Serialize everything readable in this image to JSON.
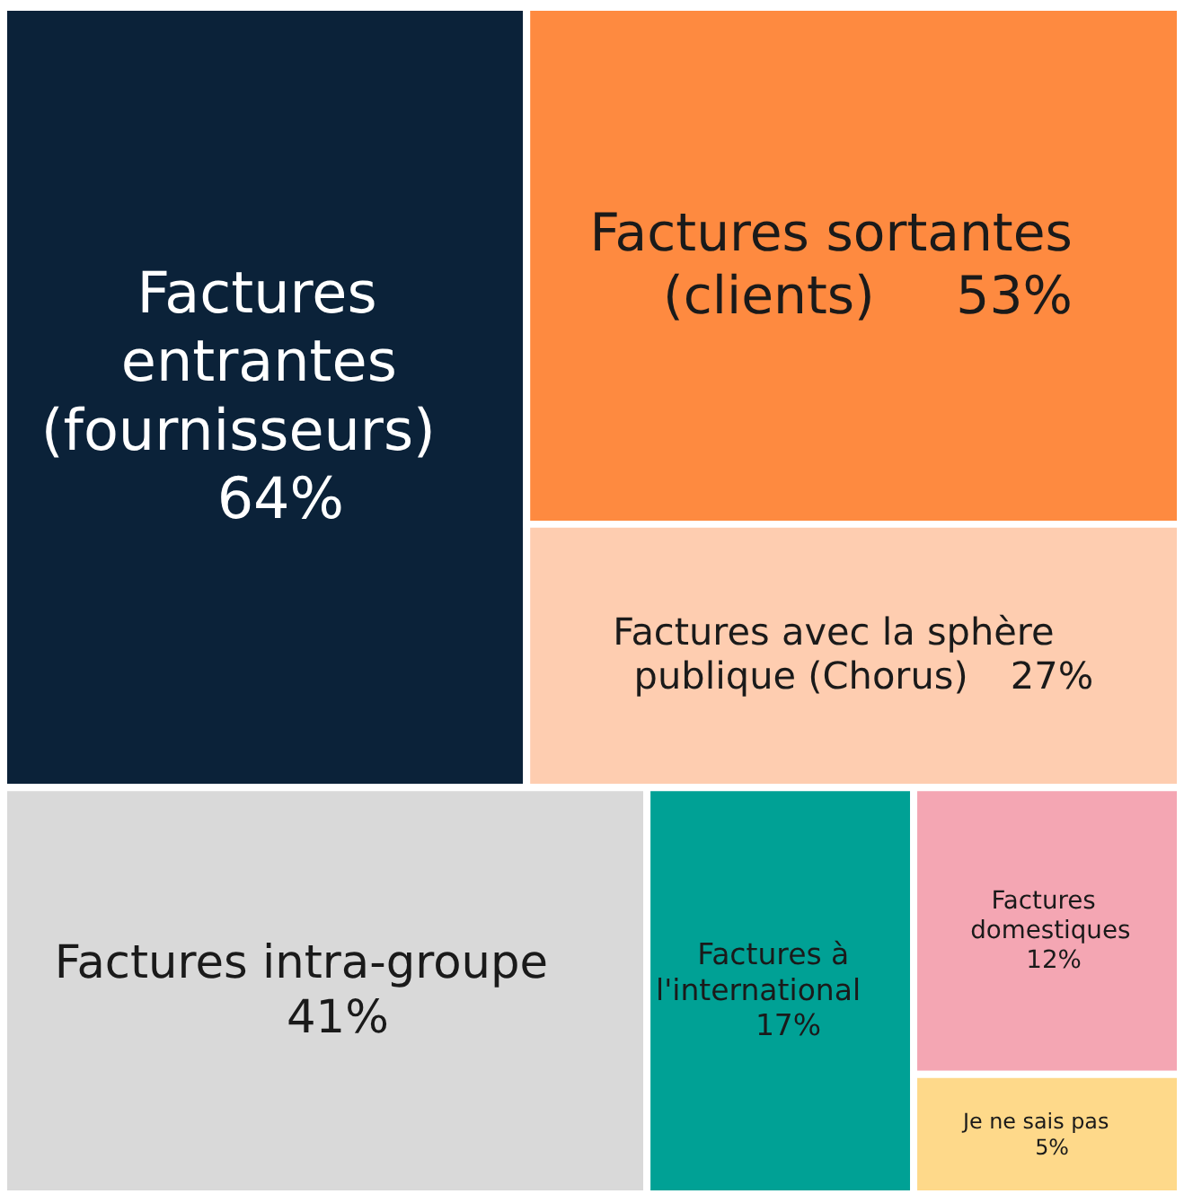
{
  "chart_data": {
    "type": "other",
    "categories": [
      "Factures entrantes (fournisseurs)",
      "Factures sortantes (clients)",
      "Factures avec la sphère publique (Chorus)",
      "Factures intra-groupe",
      "Factures à l'international",
      "Factures domestiques",
      "Je ne sais pas"
    ],
    "values": [
      64,
      53,
      27,
      41,
      17,
      12,
      5
    ],
    "value_labels": [
      "64%",
      "53%",
      "27%",
      "41%",
      "17%",
      "12%",
      "5%"
    ],
    "colors": [
      "#0b2239",
      "#fe8a40",
      "#fecdb0",
      "#d9d9d9",
      "#00a195",
      "#f4a6b3",
      "#fed98a"
    ]
  }
}
